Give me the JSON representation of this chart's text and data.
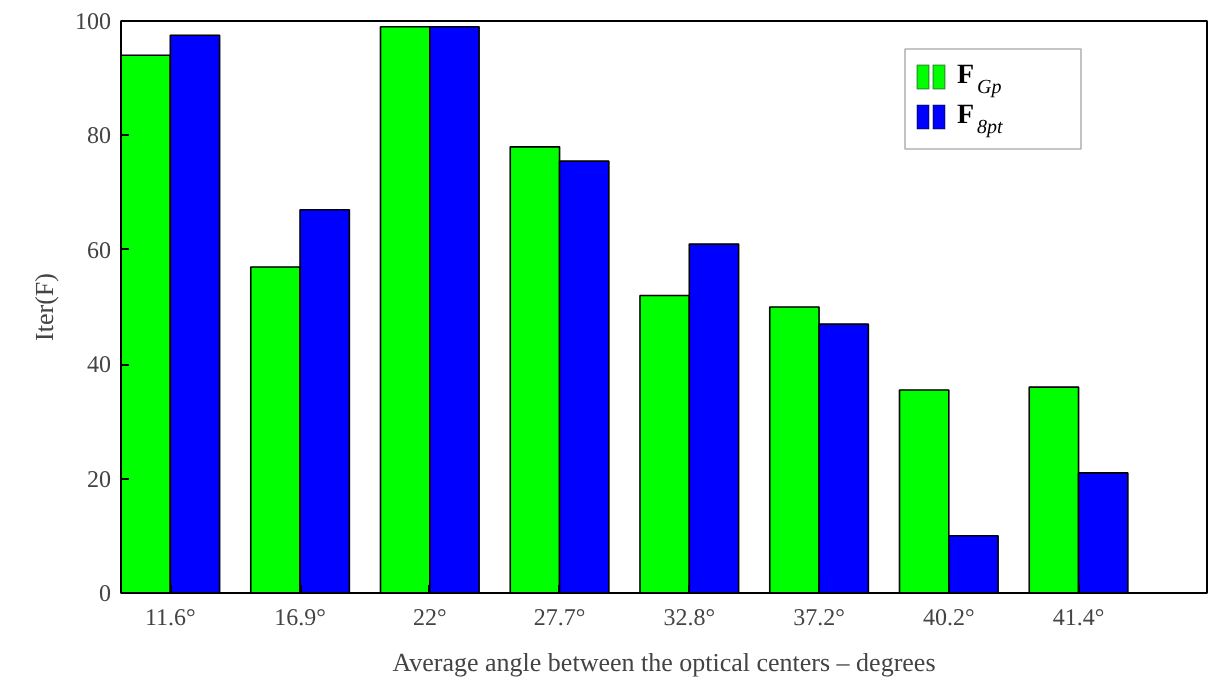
{
  "chart_data": {
    "type": "bar",
    "categories": [
      "11.6°",
      "16.9°",
      "22°",
      "27.7°",
      "32.8°",
      "37.2°",
      "40.2°",
      "41.4°"
    ],
    "xlabel": "Average angle between the optical centers – degrees",
    "ylabel": "Iter(F)",
    "series": [
      {
        "name": "F$_{Gp}$",
        "color": "#00ff00",
        "values": [
          94,
          57,
          99,
          78,
          52,
          50,
          35.5,
          36
        ]
      },
      {
        "name": "F$_{8pt}$",
        "color": "#0000ff",
        "values": [
          97.5,
          67,
          99,
          75.5,
          61,
          47,
          10,
          21
        ]
      }
    ],
    "ylim": [
      0,
      100
    ],
    "yticks": [
      0,
      20,
      40,
      60,
      80,
      100
    ],
    "grid": false,
    "legend": "top right"
  }
}
